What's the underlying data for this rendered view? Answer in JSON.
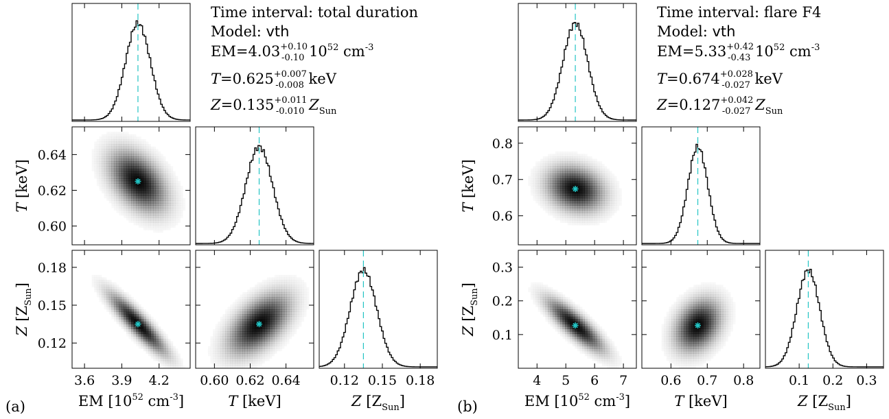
{
  "chart_data": [
    {
      "type": "corner",
      "panel_label": "(a)",
      "info": {
        "time_interval": "Time interval: total duration",
        "model_label": "Model: ",
        "model_name": "vth",
        "em": {
          "prefix": "EM=",
          "value": "4.03",
          "plus": "+0.10",
          "minus": "-0.10",
          "units_a": " 10",
          "units_sup": "52",
          "units_b": " cm",
          "units_sup2": "-3"
        },
        "temperature": {
          "sym": "T",
          "eq": "=",
          "value": "0.625",
          "plus": "+0.007",
          "minus": "-0.008",
          "units": " keV"
        },
        "abundance": {
          "sym": "Z",
          "eq": "=",
          "value": "0.135",
          "plus": "+0.011",
          "minus": "-0.010",
          "units_sym": " Z",
          "units_sub": "Sun"
        }
      },
      "parameters": [
        {
          "name": "EM",
          "best": 4.03,
          "sigma": 0.1,
          "range": [
            3.5,
            4.45
          ],
          "ticks": [
            "3.6",
            "3.9",
            "4.2"
          ],
          "tick_values": [
            3.6,
            3.9,
            4.2
          ]
        },
        {
          "name": "T",
          "best": 0.625,
          "sigma": 0.0075,
          "range": [
            0.5895,
            0.6555
          ],
          "ticks": [
            "0.60",
            "0.62",
            "0.64"
          ],
          "tick_values": [
            0.6,
            0.62,
            0.64
          ]
        },
        {
          "name": "Z",
          "best": 0.135,
          "sigma": 0.0105,
          "range": [
            0.1,
            0.1935
          ],
          "ticks": [
            "0.12",
            "0.15",
            "0.18"
          ],
          "tick_values": [
            0.12,
            0.15,
            0.18
          ]
        }
      ],
      "correlations": {
        "T_vs_EM": -0.45,
        "Z_vs_EM": -0.9,
        "Z_vs_T": 0.55
      },
      "axis_labels": {
        "x1": {
          "a": "EM [10",
          "sup": "52",
          "b": " cm",
          "sup2": "-3",
          "c": "]"
        },
        "x2": {
          "sym": "T",
          "rest": " [keV]"
        },
        "x3": {
          "sym": "Z",
          "a": " [Z",
          "sub": "Sun",
          "b": "]"
        },
        "y1": {
          "sym": "T",
          "rest": " [keV]"
        },
        "y2": {
          "sym": "Z",
          "a": " [Z",
          "sub": "Sun",
          "b": "]"
        }
      }
    },
    {
      "type": "corner",
      "panel_label": "(b)",
      "info": {
        "time_interval": "Time interval: flare F4",
        "model_label": "Model: ",
        "model_name": "vth",
        "em": {
          "prefix": "EM=",
          "value": "5.33",
          "plus": "+0.42",
          "minus": "-0.43",
          "units_a": " 10",
          "units_sup": "52",
          "units_b": " cm",
          "units_sup2": "-3"
        },
        "temperature": {
          "sym": "T",
          "eq": "=",
          "value": "0.674",
          "plus": "+0.028",
          "minus": "-0.027",
          "units": " keV"
        },
        "abundance": {
          "sym": "Z",
          "eq": "=",
          "value": "0.127",
          "plus": "+0.042",
          "minus": "-0.027",
          "units_sym": " Z",
          "units_sub": "Sun"
        }
      },
      "parameters": [
        {
          "name": "EM",
          "best": 5.33,
          "sigma": 0.43,
          "range": [
            3.35,
            7.45
          ],
          "ticks": [
            "4",
            "5",
            "6",
            "7"
          ],
          "tick_values": [
            4,
            5,
            6,
            7
          ]
        },
        {
          "name": "T",
          "best": 0.674,
          "sigma": 0.0275,
          "range": [
            0.52,
            0.845
          ],
          "ticks": [
            "0.6",
            "0.7",
            "0.8"
          ],
          "tick_values": [
            0.6,
            0.7,
            0.8
          ]
        },
        {
          "name": "Z",
          "best": 0.127,
          "sigma": 0.034,
          "range": [
            0.0,
            0.35
          ],
          "ticks": [
            "0.1",
            "0.2",
            "0.3"
          ],
          "tick_values": [
            0.1,
            0.2,
            0.3
          ]
        }
      ],
      "correlations": {
        "T_vs_EM": -0.2,
        "Z_vs_EM": -0.85,
        "Z_vs_T": 0.3
      },
      "axis_labels": {
        "x1": {
          "a": "EM [10",
          "sup": "52",
          "b": " cm",
          "sup2": "-3",
          "c": "]"
        },
        "x2": {
          "sym": "T",
          "rest": " [keV]"
        },
        "x3": {
          "sym": "Z",
          "a": " [Z",
          "sub": "Sun",
          "b": "]"
        },
        "y1": {
          "sym": "T",
          "rest": " [keV]"
        },
        "y2": {
          "sym": "Z",
          "a": " [Z",
          "sub": "Sun",
          "b": "]"
        }
      }
    }
  ],
  "colors": {
    "best_fit_marker": "#22c4c4",
    "median_line": "#22c4c4",
    "density": "#000000",
    "histogram": "#000000"
  }
}
